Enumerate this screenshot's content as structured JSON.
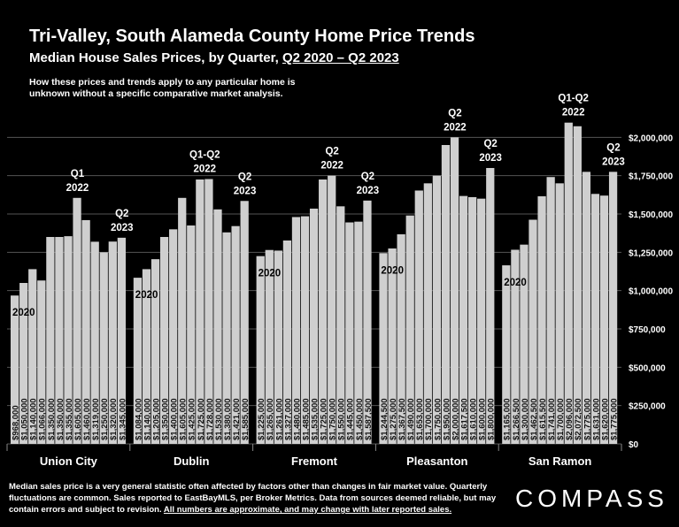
{
  "header": {
    "title": "Tri-Valley, South Alameda County Home Price Trends",
    "subtitle_prefix": "Median House Sales Prices, by Quarter, ",
    "subtitle_period": "Q2 2020 – Q2 2023",
    "note": "How these prices and trends apply to any particular home is unknown without a specific comparative market analysis."
  },
  "footer": {
    "text": "Median sales price is a very general statistic often affected by factors other than changes in fair market value. Quarterly fluctuations are common. Sales reported to EastBayMLS, per Broker Metrics. Data from sources deemed reliable, but may contain errors and subject to revision. ",
    "underlined": "All numbers are approximate, and may change with later reported sales."
  },
  "logo": "COMPASS",
  "chart_data": {
    "type": "bar",
    "ylim": [
      0,
      2250000
    ],
    "y_ticks": [
      0,
      250000,
      500000,
      750000,
      1000000,
      1250000,
      1500000,
      1750000,
      2000000
    ],
    "y_tick_labels": [
      "$0",
      "$250,000",
      "$500,000",
      "$750,000",
      "$1,000,000",
      "$1,250,000",
      "$1,500,000",
      "$1,750,000",
      "$2,000,000"
    ],
    "bar_color": "#cfcfcf",
    "grid": true,
    "groups": [
      {
        "name": "Union City",
        "values": [
          968000,
          1050000,
          1140000,
          1066000,
          1350000,
          1350000,
          1355000,
          1605000,
          1460000,
          1319000,
          1250000,
          1320000,
          1345000
        ],
        "labels": [
          "$968,000",
          "$1,050,000",
          "$1,140,000",
          "$1,066,000",
          "$1,350,000",
          "$1,350,000",
          "$1,355,000",
          "$1,605,000",
          "$1,460,000",
          "$1,319,000",
          "$1,250,000",
          "$1,320,000",
          "$1,345,000"
        ],
        "annotations": [
          {
            "index": 0,
            "text": [
              "2020"
            ]
          },
          {
            "index": 7,
            "text": [
              "Q1",
              "2022"
            ]
          },
          {
            "index": 12,
            "text": [
              "Q2",
              "2023"
            ]
          }
        ]
      },
      {
        "name": "Dublin",
        "values": [
          1084000,
          1140000,
          1205000,
          1350000,
          1400000,
          1605000,
          1425000,
          1725000,
          1728000,
          1530000,
          1380000,
          1421000,
          1585000
        ],
        "labels": [
          "$1,084,000",
          "$1,140,000",
          "$1,205,000",
          "$1,350,000",
          "$1,400,000",
          "$1,605,000",
          "$1,425,000",
          "$1,725,000",
          "$1,728,000",
          "$1,530,000",
          "$1,380,000",
          "$1,421,000",
          "$1,585,000"
        ],
        "annotations": [
          {
            "index": 0,
            "text": [
              "2020"
            ]
          },
          {
            "index": 7.5,
            "text": [
              "Q1-Q2",
              "2022"
            ]
          },
          {
            "index": 12,
            "text": [
              "Q2",
              "2023"
            ]
          }
        ]
      },
      {
        "name": "Fremont",
        "values": [
          1225000,
          1265000,
          1261000,
          1327000,
          1480000,
          1485000,
          1535000,
          1725000,
          1750000,
          1550000,
          1445000,
          1450000,
          1587500
        ],
        "labels": [
          "$1,225,000",
          "$1,265,000",
          "$1,261,000",
          "$1,327,000",
          "$1,480,000",
          "$1,485,000",
          "$1,535,000",
          "$1,725,000",
          "$1,750,000",
          "$1,550,000",
          "$1,445,000",
          "$1,450,000",
          "$1,587,500"
        ],
        "annotations": [
          {
            "index": 0,
            "text": [
              "2020"
            ]
          },
          {
            "index": 8,
            "text": [
              "Q2",
              "2022"
            ]
          },
          {
            "index": 12,
            "text": [
              "Q2",
              "2023"
            ]
          }
        ]
      },
      {
        "name": "Pleasanton",
        "values": [
          1244500,
          1275000,
          1367500,
          1490000,
          1653000,
          1700000,
          1750000,
          1950000,
          2000000,
          1617500,
          1610000,
          1600000,
          1800000
        ],
        "labels": [
          "$1,244,500",
          "$1,275,000",
          "$1,367,500",
          "$1,490,000",
          "$1,653,000",
          "$1,700,000",
          "$1,750,000",
          "$1,950,000",
          "$2,000,000",
          "$1,617,500",
          "$1,610,000",
          "$1,600,000",
          "$1,800,000"
        ],
        "annotations": [
          {
            "index": 0,
            "text": [
              "2020"
            ]
          },
          {
            "index": 8,
            "text": [
              "Q2",
              "2022"
            ]
          },
          {
            "index": 12,
            "text": [
              "Q2",
              "2023"
            ]
          }
        ]
      },
      {
        "name": "San Ramon",
        "values": [
          1165000,
          1266500,
          1300000,
          1462500,
          1615500,
          1741000,
          1700000,
          2096000,
          2072500,
          1775000,
          1631000,
          1620000,
          1775000
        ],
        "labels": [
          "$1,165,000",
          "$1,266,500",
          "$1,300,000",
          "$1,462,500",
          "$1,615,500",
          "$1,741,000",
          "$1,700,000",
          "$2,096,000",
          "$2,072,500",
          "$1,775,000",
          "$1,631,000",
          "$1,620,000",
          "$1,775,000"
        ],
        "annotations": [
          {
            "index": 0,
            "text": [
              "2020"
            ]
          },
          {
            "index": 7.5,
            "text": [
              "Q1-Q2",
              "2022"
            ]
          },
          {
            "index": 12,
            "text": [
              "Q2",
              "2023"
            ]
          }
        ]
      }
    ]
  }
}
